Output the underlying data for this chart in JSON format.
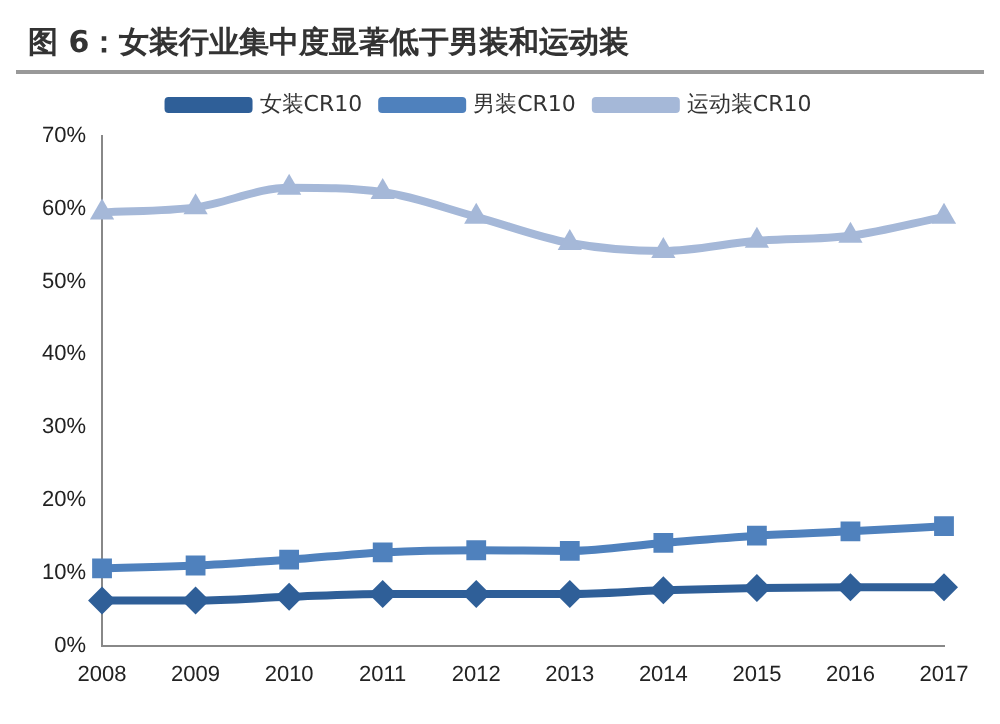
{
  "chart_data": {
    "type": "line",
    "title": "图 6：女装行业集中度显著低于男装和运动装",
    "categories": [
      "2008",
      "2009",
      "2010",
      "2011",
      "2012",
      "2013",
      "2014",
      "2015",
      "2016",
      "2017"
    ],
    "series": [
      {
        "name": "女装CR10",
        "color": "#2f5f98",
        "marker": "diamond",
        "values": [
          6.2,
          6.2,
          6.7,
          7.1,
          7.1,
          7.1,
          7.6,
          7.9,
          8.0,
          8.0
        ]
      },
      {
        "name": "男装CR10",
        "color": "#4f81bd",
        "marker": "square",
        "values": [
          10.6,
          11.0,
          11.8,
          12.8,
          13.1,
          13.0,
          14.1,
          15.1,
          15.7,
          16.4
        ]
      },
      {
        "name": "运动装CR10",
        "color": "#a5b8d8",
        "marker": "triangle",
        "values": [
          59.5,
          60.2,
          62.9,
          62.3,
          58.9,
          55.3,
          54.2,
          55.6,
          56.3,
          58.9
        ]
      }
    ],
    "ylim": [
      0,
      70
    ],
    "yticks": [
      {
        "value": 0,
        "label": "0%"
      },
      {
        "value": 10,
        "label": "10%"
      },
      {
        "value": 20,
        "label": "20%"
      },
      {
        "value": 30,
        "label": "30%"
      },
      {
        "value": 40,
        "label": "40%"
      },
      {
        "value": 50,
        "label": "50%"
      },
      {
        "value": 60,
        "label": "60%"
      },
      {
        "value": 70,
        "label": "70%"
      }
    ],
    "grid": false,
    "legend": "top",
    "line_style": "solid"
  }
}
